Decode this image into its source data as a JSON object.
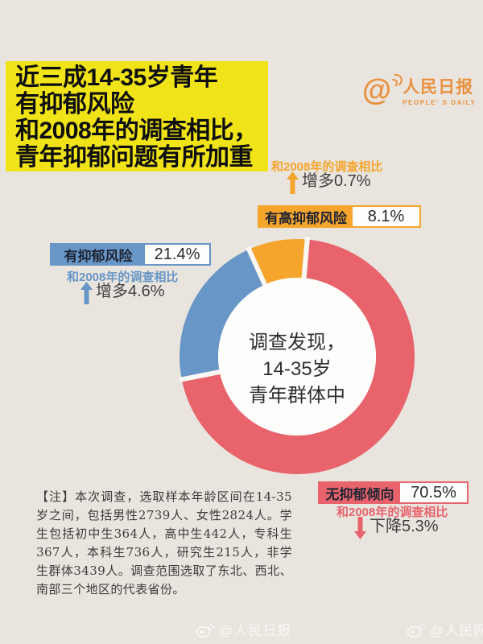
{
  "page_bg": "#E9E5DE",
  "title": {
    "bg": "#F0E318",
    "lines": [
      "近三成14-35岁青年",
      "有抑郁风险",
      "和2008年的调查相比，",
      "青年抑郁问题有所加重"
    ]
  },
  "logo": {
    "at": "@",
    "name": "人民日报",
    "subtitle": "PEOPLE' S DAILY",
    "color": "#E9913E"
  },
  "note": {
    "text": "【注】本次调查，选取样本年龄区间在14-35岁之间，包括男性2739人、女性2824人。学生包括初中生364人，高中生442人，专科生367人，本科生736人，研究生215人，非学生群体3439人。调查范围选取了东北、西北、南部三个地区的代表省份。"
  },
  "watermarks": {
    "left": "@人民日报",
    "right": "@人民网"
  },
  "chart_data": {
    "type": "pie",
    "style": "donut",
    "unit": "%",
    "start_angle_deg": 5,
    "center_text_lines": [
      "调查发现，",
      "14-35岁",
      "青年群体中"
    ],
    "segments": [
      {
        "label": "无抑郁倾向",
        "value": 70.5,
        "display": "70.5%",
        "color": "#E8636C",
        "compare_label": "和2008年的调查相比",
        "change": "下降5.3%",
        "direction": "down"
      },
      {
        "label": "有抑郁风险",
        "value": 21.4,
        "display": "21.4%",
        "color": "#6896C6",
        "compare_label": "和2008年的调查相比",
        "change": "增多4.6%",
        "direction": "up"
      },
      {
        "label": "有高抑郁风险",
        "value": 8.1,
        "display": "8.1%",
        "color": "#F5A52C",
        "compare_label": "和2008年的调查相比",
        "change": "增多0.7%",
        "direction": "up"
      }
    ]
  }
}
